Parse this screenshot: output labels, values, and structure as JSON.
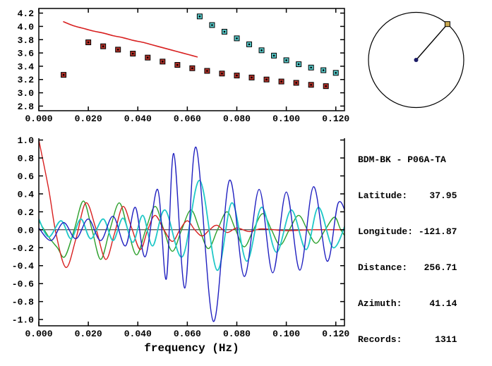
{
  "station_info": {
    "title": "BDM-BK - P06A-TA",
    "fields": [
      {
        "label": "Latitude:",
        "value": "37.95"
      },
      {
        "label": "Longitude:",
        "value": "-121.87"
      },
      {
        "label": "Distance:",
        "value": "256.71"
      },
      {
        "label": "Azimuth:",
        "value": "41.14"
      },
      {
        "label": "Records:",
        "value": "1311"
      }
    ]
  },
  "azimuth_dial": {
    "azimuth_deg": 41.14,
    "circle_color": "#000000",
    "center_color": "#1a1a66",
    "marker_color": "#c8a850"
  },
  "colors": {
    "axis": "#000000",
    "background": "#ffffff"
  },
  "chart_data": [
    {
      "id": "dispersion",
      "type": "scatter",
      "title": "",
      "xlabel": "",
      "ylabel": "",
      "xlim": [
        0,
        0.1235
      ],
      "ylim": [
        2.73,
        4.27
      ],
      "frame": "box",
      "grid": false,
      "zero_line": false,
      "xticks": [
        0,
        0.02,
        0.04,
        0.06,
        0.08,
        0.1,
        0.12
      ],
      "xtick_labels": [
        "0.000",
        "0.020",
        "0.040",
        "0.060",
        "0.080",
        "0.100",
        "0.120"
      ],
      "yticks": [
        2.8,
        3.0,
        3.2,
        3.4,
        3.6,
        3.8,
        4.0,
        4.2
      ],
      "ytick_labels": [
        "2.8",
        "3.0",
        "3.2",
        "3.4",
        "3.6",
        "3.8",
        "4.0",
        "4.2"
      ],
      "series": [
        {
          "name": "red-reference-curve",
          "style": "line",
          "color": "#d82020",
          "width": 1.6,
          "points": [
            [
              0.01,
              4.07
            ],
            [
              0.014,
              4.01
            ],
            [
              0.018,
              3.97
            ],
            [
              0.022,
              3.93
            ],
            [
              0.026,
              3.9
            ],
            [
              0.03,
              3.86
            ],
            [
              0.034,
              3.83
            ],
            [
              0.038,
              3.79
            ],
            [
              0.042,
              3.76
            ],
            [
              0.046,
              3.72
            ],
            [
              0.05,
              3.68
            ],
            [
              0.054,
              3.64
            ],
            [
              0.058,
              3.6
            ],
            [
              0.061,
              3.57
            ],
            [
              0.064,
              3.54
            ]
          ]
        },
        {
          "name": "red-dispersion-picks",
          "style": "squares",
          "color": "#b23028",
          "points": [
            [
              0.01,
              3.27
            ],
            [
              0.02,
              3.76
            ],
            [
              0.026,
              3.7
            ],
            [
              0.032,
              3.65
            ],
            [
              0.038,
              3.59
            ],
            [
              0.044,
              3.53
            ],
            [
              0.05,
              3.47
            ],
            [
              0.056,
              3.42
            ],
            [
              0.062,
              3.37
            ],
            [
              0.068,
              3.33
            ],
            [
              0.074,
              3.29
            ],
            [
              0.08,
              3.26
            ],
            [
              0.086,
              3.23
            ],
            [
              0.092,
              3.2
            ],
            [
              0.098,
              3.17
            ],
            [
              0.104,
              3.15
            ],
            [
              0.11,
              3.12
            ],
            [
              0.116,
              3.1
            ]
          ]
        },
        {
          "name": "cyan-dispersion-picks",
          "style": "squares",
          "color": "#55c8c8",
          "points": [
            [
              0.065,
              4.15
            ],
            [
              0.07,
              4.02
            ],
            [
              0.075,
              3.92
            ],
            [
              0.08,
              3.82
            ],
            [
              0.085,
              3.73
            ],
            [
              0.09,
              3.64
            ],
            [
              0.095,
              3.56
            ],
            [
              0.1,
              3.49
            ],
            [
              0.105,
              3.43
            ],
            [
              0.11,
              3.38
            ],
            [
              0.115,
              3.34
            ],
            [
              0.12,
              3.3
            ]
          ]
        }
      ]
    },
    {
      "id": "waveform",
      "type": "line",
      "title": "",
      "xlabel": "frequency (Hz)",
      "ylabel": "",
      "xlim": [
        0,
        0.1235
      ],
      "ylim": [
        -1.07,
        1.02
      ],
      "frame": "open-top",
      "grid": false,
      "zero_line": true,
      "xticks": [
        0,
        0.02,
        0.04,
        0.06,
        0.08,
        0.1,
        0.12
      ],
      "xtick_labels": [
        "0.000",
        "0.020",
        "0.040",
        "0.060",
        "0.080",
        "0.100",
        "0.120"
      ],
      "yticks": [
        -1.0,
        -0.8,
        -0.6,
        -0.4,
        -0.2,
        0.0,
        0.2,
        0.4,
        0.6,
        0.8,
        1.0
      ],
      "ytick_labels": [
        "-1.0",
        "-0.8",
        "-0.6",
        "-0.4",
        "-0.2",
        "0.0",
        "0.2",
        "0.4",
        "0.6",
        "0.8",
        "1.0"
      ],
      "series": [
        {
          "name": "green-waveform",
          "style": "line",
          "color": "#2ca02c",
          "width": 1.4,
          "points": [
            [
              0.0,
              0.1
            ],
            [
              0.004,
              -0.08
            ],
            [
              0.0075,
              -0.2
            ],
            [
              0.0105,
              -0.3
            ],
            [
              0.0143,
              0.0
            ],
            [
              0.018,
              0.32
            ],
            [
              0.0215,
              0.0
            ],
            [
              0.025,
              -0.33
            ],
            [
              0.0287,
              0.0
            ],
            [
              0.0325,
              0.3
            ],
            [
              0.036,
              0.0
            ],
            [
              0.0395,
              -0.28
            ],
            [
              0.0432,
              0.0
            ],
            [
              0.047,
              0.26
            ],
            [
              0.0505,
              0.0
            ],
            [
              0.054,
              -0.24
            ],
            [
              0.0577,
              0.0
            ],
            [
              0.0615,
              0.22
            ],
            [
              0.065,
              0.0
            ],
            [
              0.0685,
              -0.21
            ],
            [
              0.0722,
              0.0
            ],
            [
              0.076,
              0.2
            ],
            [
              0.0795,
              0.0
            ],
            [
              0.083,
              -0.19
            ],
            [
              0.0867,
              0.0
            ],
            [
              0.0905,
              0.18
            ],
            [
              0.094,
              0.0
            ],
            [
              0.0975,
              -0.17
            ],
            [
              0.1012,
              0.0
            ],
            [
              0.105,
              0.16
            ],
            [
              0.1085,
              0.0
            ],
            [
              0.112,
              -0.15
            ],
            [
              0.1157,
              0.0
            ],
            [
              0.1195,
              0.14
            ],
            [
              0.122,
              0.0
            ],
            [
              0.125,
              -0.12
            ]
          ]
        },
        {
          "name": "red-waveform",
          "style": "line",
          "color": "#d82020",
          "width": 1.4,
          "points": [
            [
              0.0,
              1.0
            ],
            [
              0.004,
              0.45
            ],
            [
              0.007,
              -0.05
            ],
            [
              0.011,
              -0.42
            ],
            [
              0.015,
              -0.1
            ],
            [
              0.019,
              0.3
            ],
            [
              0.023,
              0.02
            ],
            [
              0.027,
              -0.33
            ],
            [
              0.0305,
              -0.05
            ],
            [
              0.034,
              0.26
            ],
            [
              0.0375,
              0.02
            ],
            [
              0.041,
              -0.22
            ],
            [
              0.044,
              0.0
            ],
            [
              0.047,
              0.16
            ],
            [
              0.0505,
              0.0
            ],
            [
              0.054,
              -0.13
            ],
            [
              0.057,
              0.0
            ],
            [
              0.06,
              0.1
            ],
            [
              0.063,
              0.0
            ],
            [
              0.066,
              -0.07
            ],
            [
              0.069,
              0.0
            ],
            [
              0.072,
              0.05
            ],
            [
              0.076,
              -0.03
            ],
            [
              0.08,
              0.02
            ],
            [
              0.085,
              -0.02
            ],
            [
              0.09,
              0.01
            ],
            [
              0.1,
              -0.01
            ],
            [
              0.11,
              0.0
            ],
            [
              0.125,
              0.0
            ]
          ]
        },
        {
          "name": "cyan-waveform",
          "style": "line",
          "color": "#20c8c8",
          "width": 1.8,
          "points": [
            [
              0.0,
              0.12
            ],
            [
              0.004,
              -0.08
            ],
            [
              0.009,
              0.1
            ],
            [
              0.013,
              -0.1
            ],
            [
              0.017,
              0.12
            ],
            [
              0.021,
              -0.1
            ],
            [
              0.026,
              0.12
            ],
            [
              0.03,
              -0.12
            ],
            [
              0.034,
              0.13
            ],
            [
              0.038,
              -0.14
            ],
            [
              0.042,
              0.16
            ],
            [
              0.046,
              -0.18
            ],
            [
              0.051,
              0.22
            ],
            [
              0.058,
              -0.3
            ],
            [
              0.065,
              0.55
            ],
            [
              0.072,
              -0.45
            ],
            [
              0.078,
              0.3
            ],
            [
              0.084,
              -0.35
            ],
            [
              0.09,
              0.25
            ],
            [
              0.096,
              -0.25
            ],
            [
              0.102,
              0.22
            ],
            [
              0.108,
              -0.22
            ],
            [
              0.113,
              0.25
            ],
            [
              0.119,
              -0.2
            ],
            [
              0.125,
              0.15
            ]
          ]
        },
        {
          "name": "blue-waveform",
          "style": "line",
          "color": "#2020c0",
          "width": 1.4,
          "points": [
            [
              0.0,
              0.02
            ],
            [
              0.005,
              -0.12
            ],
            [
              0.01,
              0.08
            ],
            [
              0.015,
              -0.1
            ],
            [
              0.02,
              0.12
            ],
            [
              0.025,
              -0.12
            ],
            [
              0.03,
              0.15
            ],
            [
              0.035,
              -0.18
            ],
            [
              0.039,
              0.25
            ],
            [
              0.043,
              -0.3
            ],
            [
              0.048,
              0.45
            ],
            [
              0.0515,
              -0.55
            ],
            [
              0.0545,
              0.85
            ],
            [
              0.059,
              -0.65
            ],
            [
              0.0635,
              0.92
            ],
            [
              0.0705,
              -1.02
            ],
            [
              0.077,
              0.55
            ],
            [
              0.083,
              -0.52
            ],
            [
              0.089,
              0.45
            ],
            [
              0.0945,
              -0.48
            ],
            [
              0.1,
              0.42
            ],
            [
              0.1055,
              -0.45
            ],
            [
              0.111,
              0.48
            ],
            [
              0.1165,
              -0.35
            ],
            [
              0.121,
              0.3
            ],
            [
              0.125,
              0.1
            ]
          ]
        }
      ]
    }
  ]
}
